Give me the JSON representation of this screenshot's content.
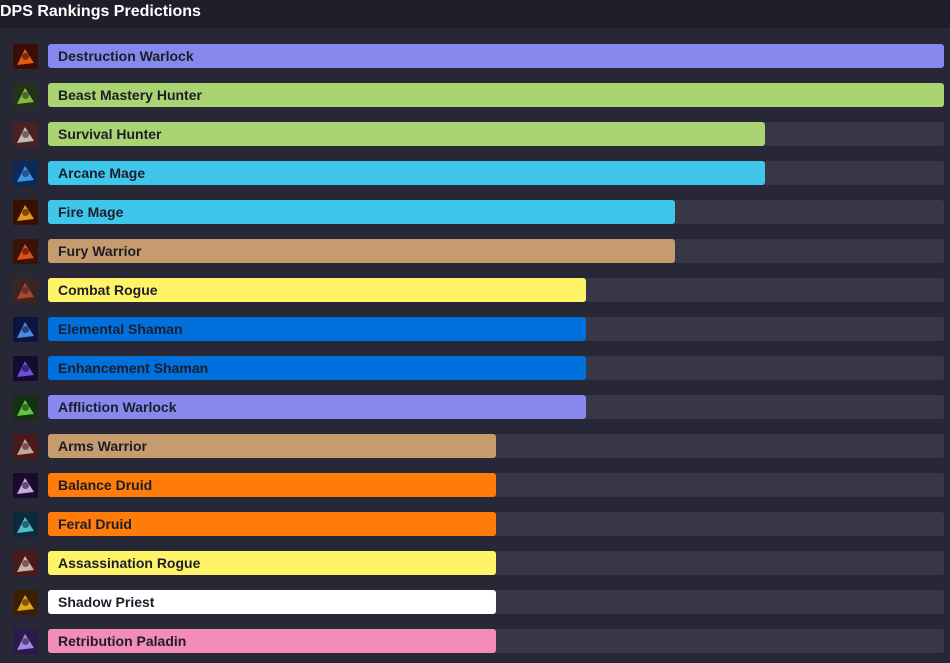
{
  "header": {
    "title": "DPS Rankings Predictions"
  },
  "chart_data": {
    "type": "bar",
    "orientation": "horizontal",
    "title": "DPS Rankings Predictions",
    "xlim": [
      0,
      100
    ],
    "categories": [
      "Destruction Warlock",
      "Beast Mastery Hunter",
      "Survival Hunter",
      "Arcane Mage",
      "Fire Mage",
      "Fury Warrior",
      "Combat Rogue",
      "Elemental Shaman",
      "Enhancement Shaman",
      "Affliction Warlock",
      "Arms Warrior",
      "Balance Druid",
      "Feral Druid",
      "Assassination Rogue",
      "Shadow Priest",
      "Retribution Paladin"
    ],
    "values": [
      100,
      100,
      80,
      80,
      70,
      70,
      60,
      60,
      60,
      60,
      50,
      50,
      50,
      50,
      50,
      50
    ],
    "colors": [
      "#8788ee",
      "#aad372",
      "#aad372",
      "#3fc7eb",
      "#3fc7eb",
      "#c69b6d",
      "#fff468",
      "#0070dd",
      "#0070dd",
      "#8788ee",
      "#c69b6d",
      "#ff7c0a",
      "#ff7c0a",
      "#fff468",
      "#ffffff",
      "#f48cba"
    ],
    "icons": [
      "destruction-warlock-icon",
      "beast-mastery-hunter-icon",
      "survival-hunter-icon",
      "arcane-mage-icon",
      "fire-mage-icon",
      "fury-warrior-icon",
      "combat-rogue-icon",
      "elemental-shaman-icon",
      "enhancement-shaman-icon",
      "affliction-warlock-icon",
      "arms-warrior-icon",
      "balance-druid-icon",
      "feral-druid-icon",
      "assassination-rogue-icon",
      "shadow-priest-icon",
      "retribution-paladin-icon"
    ],
    "icon_colors": [
      [
        "#3a0d06",
        "#ff6a1a"
      ],
      [
        "#23331a",
        "#9bd34a"
      ],
      [
        "#4a2020",
        "#d8d8d8"
      ],
      [
        "#0b2a5a",
        "#4aa8ff"
      ],
      [
        "#3a0f00",
        "#ffb020"
      ],
      [
        "#3a1208",
        "#ff5a1a"
      ],
      [
        "#3a2520",
        "#c44a3a"
      ],
      [
        "#0a1640",
        "#5a9cff"
      ],
      [
        "#140b2e",
        "#7a5cff"
      ],
      [
        "#163014",
        "#6ee04a"
      ],
      [
        "#4a1a1a",
        "#d8c0b0"
      ],
      [
        "#1a0b2e",
        "#e6c8ff"
      ],
      [
        "#0b2a3a",
        "#5ad8e0"
      ],
      [
        "#4a1a1a",
        "#e0d0c0"
      ],
      [
        "#3a2000",
        "#ffc020"
      ],
      [
        "#2a1a4a",
        "#b89cff"
      ]
    ]
  }
}
